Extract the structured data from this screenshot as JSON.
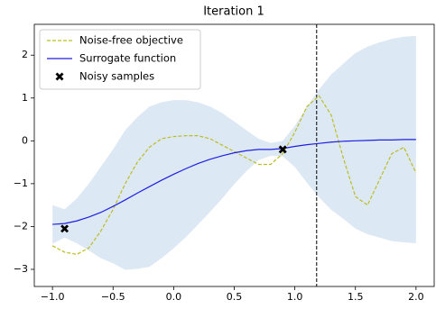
{
  "chart_data": {
    "type": "line",
    "title": "Iteration 1",
    "x": [
      -1.0,
      -0.9,
      -0.8,
      -0.7,
      -0.6,
      -0.5,
      -0.4,
      -0.3,
      -0.2,
      -0.1,
      0.0,
      0.1,
      0.2,
      0.3,
      0.4,
      0.5,
      0.6,
      0.7,
      0.8,
      0.9,
      1.0,
      1.1,
      1.2,
      1.3,
      1.4,
      1.5,
      1.6,
      1.7,
      1.8,
      1.9,
      2.0
    ],
    "series": [
      {
        "name": "Noise-free objective",
        "color": "#bcbd22",
        "dashed": true,
        "values": [
          -2.45,
          -2.6,
          -2.65,
          -2.5,
          -2.1,
          -1.6,
          -1.0,
          -0.5,
          -0.15,
          0.05,
          0.1,
          0.12,
          0.12,
          0.05,
          -0.1,
          -0.25,
          -0.4,
          -0.55,
          -0.55,
          -0.3,
          0.2,
          0.8,
          1.05,
          0.6,
          -0.4,
          -1.3,
          -1.5,
          -0.9,
          -0.3,
          -0.15,
          -0.75
        ]
      },
      {
        "name": "Surrogate function",
        "color": "#1f1fe0",
        "dashed": false,
        "values": [
          -1.95,
          -1.93,
          -1.87,
          -1.78,
          -1.67,
          -1.53,
          -1.38,
          -1.22,
          -1.07,
          -0.92,
          -0.78,
          -0.65,
          -0.53,
          -0.43,
          -0.35,
          -0.28,
          -0.23,
          -0.2,
          -0.2,
          -0.18,
          -0.13,
          -0.09,
          -0.06,
          -0.03,
          -0.01,
          0.0,
          0.01,
          0.02,
          0.02,
          0.03,
          0.03
        ]
      }
    ],
    "band": {
      "color": "#dde8f5",
      "upper": [
        -1.5,
        -1.6,
        -1.35,
        -1.0,
        -0.6,
        -0.2,
        0.25,
        0.55,
        0.8,
        0.9,
        0.95,
        0.95,
        0.9,
        0.8,
        0.65,
        0.45,
        0.25,
        0.05,
        -0.05,
        0.0,
        0.35,
        0.8,
        1.2,
        1.55,
        1.8,
        2.05,
        2.2,
        2.3,
        2.38,
        2.43,
        2.45
      ],
      "lower": [
        -2.4,
        -2.26,
        -2.39,
        -2.56,
        -2.74,
        -2.86,
        -3.01,
        -2.99,
        -2.94,
        -2.74,
        -2.51,
        -2.25,
        -1.96,
        -1.66,
        -1.35,
        -1.01,
        -0.71,
        -0.45,
        -0.35,
        -0.36,
        -0.61,
        -0.98,
        -1.32,
        -1.61,
        -1.82,
        -2.05,
        -2.18,
        -2.26,
        -2.34,
        -2.37,
        -2.39
      ]
    },
    "samples": {
      "name": "Noisy samples",
      "color": "#000000",
      "x": [
        -0.9,
        0.9
      ],
      "values": [
        -2.05,
        -0.2
      ]
    },
    "next_x": 1.18,
    "xlim": [
      -1.15,
      2.15
    ],
    "ylim": [
      -3.4,
      2.72
    ],
    "xticks": [
      {
        "value": -1.0,
        "label": "−1.0"
      },
      {
        "value": -0.5,
        "label": "−0.5"
      },
      {
        "value": 0.0,
        "label": "0.0"
      },
      {
        "value": 0.5,
        "label": "0.5"
      },
      {
        "value": 1.0,
        "label": "1.0"
      },
      {
        "value": 1.5,
        "label": "1.5"
      },
      {
        "value": 2.0,
        "label": "2.0"
      }
    ],
    "yticks": [
      {
        "value": -3,
        "label": "−3"
      },
      {
        "value": -2,
        "label": "−2"
      },
      {
        "value": -1,
        "label": "−1"
      },
      0,
      1,
      2
    ],
    "legend": "upper left"
  }
}
